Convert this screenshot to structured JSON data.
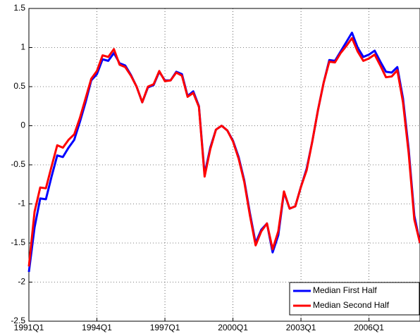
{
  "chart_data": {
    "type": "line",
    "categories": [
      "1991Q1",
      null,
      null,
      null,
      null,
      null,
      null,
      null,
      null,
      null,
      null,
      null,
      "1994Q1",
      null,
      null,
      null,
      null,
      null,
      null,
      null,
      null,
      null,
      null,
      null,
      "1997Q1",
      null,
      null,
      null,
      null,
      null,
      null,
      null,
      null,
      null,
      null,
      null,
      "2000Q1",
      null,
      null,
      null,
      null,
      null,
      null,
      null,
      null,
      null,
      null,
      null,
      "2003Q1",
      null,
      null,
      null,
      null,
      null,
      null,
      null,
      null,
      null,
      null,
      null,
      "2006Q1",
      null,
      null,
      null,
      null,
      null,
      null,
      null,
      null,
      null
    ],
    "series": [
      {
        "name": "Median First Half",
        "color": "#0000ff",
        "values": [
          -1.87,
          -1.3,
          -0.93,
          -0.94,
          -0.65,
          -0.38,
          -0.4,
          -0.28,
          -0.18,
          0.05,
          0.3,
          0.58,
          0.66,
          0.85,
          0.83,
          0.93,
          0.8,
          0.77,
          0.65,
          0.5,
          0.3,
          0.49,
          0.52,
          0.69,
          0.58,
          0.58,
          0.69,
          0.66,
          0.38,
          0.44,
          0.25,
          -0.62,
          -0.28,
          -0.05,
          0,
          -0.06,
          -0.19,
          -0.4,
          -0.7,
          -1.12,
          -1.5,
          -1.33,
          -1.25,
          -1.62,
          -1.4,
          -0.85,
          -1.06,
          -1.03,
          -0.78,
          -0.55,
          -0.2,
          0.2,
          0.55,
          0.84,
          0.83,
          0.95,
          1.07,
          1.19,
          1.0,
          0.88,
          0.91,
          0.96,
          0.82,
          0.69,
          0.68,
          0.75,
          0.35,
          -0.3,
          -1.15,
          -1.5
        ]
      },
      {
        "name": "Median Second Half",
        "color": "#ff0000",
        "values": [
          -1.8,
          -1.1,
          -0.79,
          -0.8,
          -0.52,
          -0.25,
          -0.28,
          -0.18,
          -0.11,
          0.1,
          0.35,
          0.6,
          0.7,
          0.9,
          0.88,
          0.98,
          0.78,
          0.75,
          0.64,
          0.5,
          0.3,
          0.5,
          0.53,
          0.7,
          0.57,
          0.58,
          0.68,
          0.64,
          0.37,
          0.42,
          0.24,
          -0.65,
          -0.3,
          -0.05,
          0,
          -0.06,
          -0.2,
          -0.42,
          -0.72,
          -1.15,
          -1.53,
          -1.35,
          -1.25,
          -1.58,
          -1.35,
          -0.84,
          -1.06,
          -1.03,
          -0.78,
          -0.57,
          -0.2,
          0.2,
          0.55,
          0.82,
          0.81,
          0.93,
          1.02,
          1.12,
          0.95,
          0.83,
          0.86,
          0.91,
          0.77,
          0.62,
          0.63,
          0.71,
          0.3,
          -0.35,
          -1.2,
          -1.5
        ]
      }
    ],
    "ylim": [
      -2.5,
      1.5
    ],
    "yticks": [
      1.5,
      1,
      0.5,
      0,
      -0.5,
      -1,
      -1.5,
      -2,
      -2.5
    ],
    "grid": true,
    "legend": "lower right"
  }
}
